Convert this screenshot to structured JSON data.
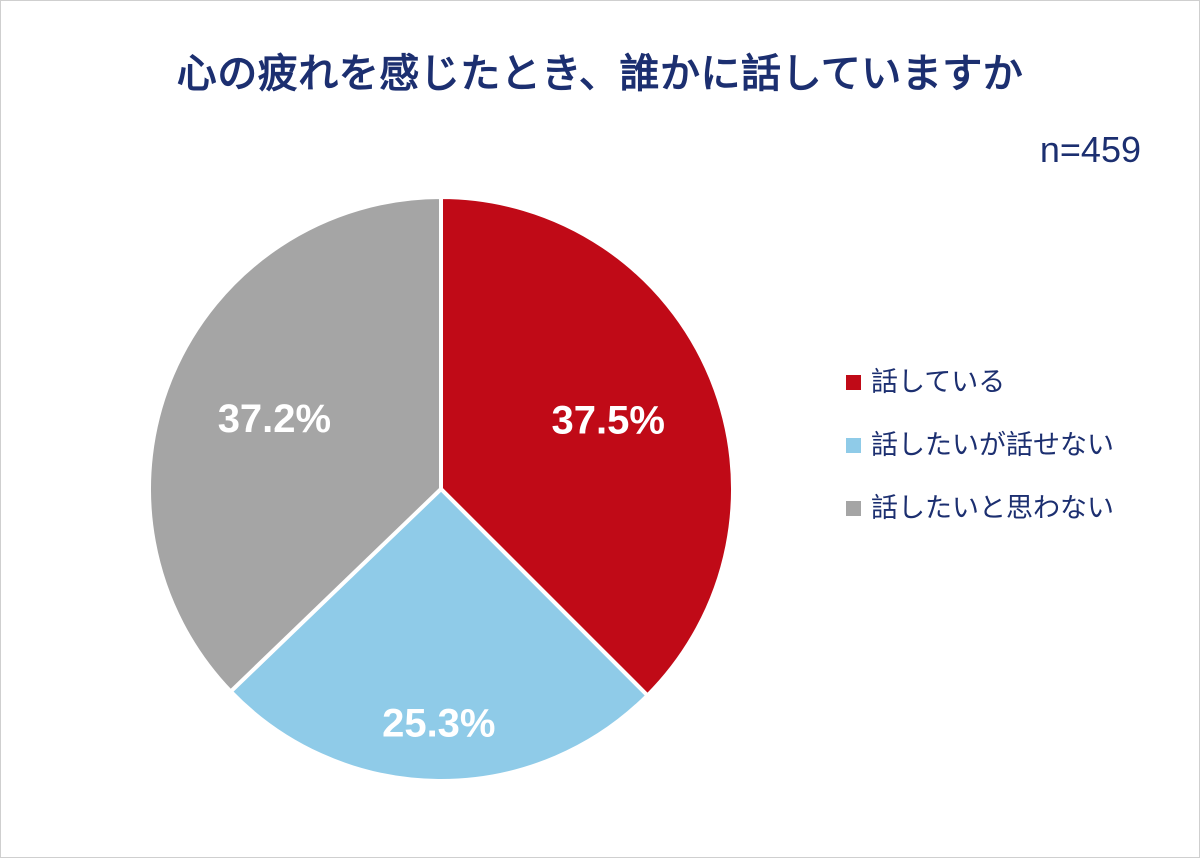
{
  "page": {
    "title": "心の疲れを感じたとき、誰かに話していますか",
    "sample_size_label": "n=459"
  },
  "chart_data": {
    "type": "pie",
    "title": "心の疲れを感じたとき、誰かに話していますか",
    "sample_size": "n=459",
    "labels": [
      "話している",
      "話したいが話せない",
      "話したいと思わない"
    ],
    "values": [
      37.5,
      25.3,
      37.2
    ],
    "value_labels": [
      "37.5%",
      "25.3%",
      "37.2%"
    ],
    "colors": [
      "#c00a17",
      "#8fcbe8",
      "#a5a5a5"
    ],
    "start_angle_deg": 0,
    "direction": "clockwise",
    "legend_position": "right",
    "label_radius_factors": [
      0.62,
      0.8,
      0.62
    ]
  },
  "legend": {
    "items": [
      {
        "label": "話している",
        "color": "#c00a17"
      },
      {
        "label": "話したいが話せない",
        "color": "#8fcbe8"
      },
      {
        "label": "話したいと思わない",
        "color": "#a5a5a5"
      }
    ]
  },
  "colors": {
    "title_text": "#1c2f70",
    "legend_text": "#1c2f70",
    "slice_label_text": "#ffffff",
    "background": "#ffffff",
    "border": "#cfcfcf"
  }
}
